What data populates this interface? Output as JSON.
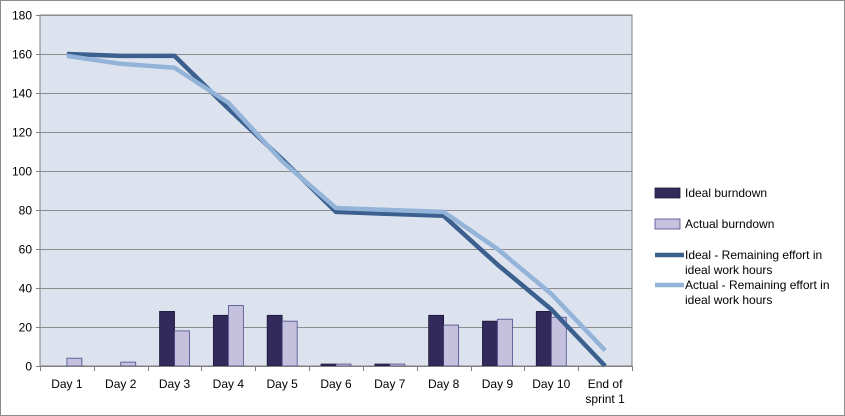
{
  "chart_data": {
    "type": "bar",
    "categories": [
      "Day 1",
      "Day 2",
      "Day 3",
      "Day 4",
      "Day 5",
      "Day 6",
      "Day 7",
      "Day 8",
      "Day 9",
      "Day 10",
      "End of sprint 1"
    ],
    "category_lines": [
      [
        "Day 1"
      ],
      [
        "Day 2"
      ],
      [
        "Day 3"
      ],
      [
        "Day 4"
      ],
      [
        "Day 5"
      ],
      [
        "Day 6"
      ],
      [
        "Day 7"
      ],
      [
        "Day 8"
      ],
      [
        "Day 9"
      ],
      [
        "Day 10"
      ],
      [
        "End of",
        "sprint 1"
      ]
    ],
    "series": [
      {
        "name": "Ideal burndown",
        "kind": "bar",
        "color": "#312a5a",
        "values": [
          0,
          0,
          28,
          26,
          26,
          1,
          1,
          26,
          23,
          28,
          null
        ]
      },
      {
        "name": "Actual burndown",
        "kind": "bar",
        "color": "#c4c0de",
        "values": [
          4,
          2,
          18,
          31,
          23,
          1,
          1,
          21,
          24,
          25,
          null
        ]
      },
      {
        "name": "Ideal - Remaining effort in ideal work hours",
        "kind": "line",
        "color": "#3b5f8e",
        "values": [
          160,
          159,
          159,
          132,
          106,
          79,
          78,
          77,
          52,
          29,
          0
        ]
      },
      {
        "name": "Actual - Remaining effort in ideal work hours",
        "kind": "line",
        "color": "#93b3d9",
        "values": [
          159,
          155,
          153,
          135,
          105,
          81,
          80,
          79,
          60,
          37,
          8
        ]
      }
    ],
    "legend_lines": [
      [
        "Ideal burndown"
      ],
      [
        "Actual burndown"
      ],
      [
        "Ideal - Remaining effort in",
        "ideal work hours"
      ],
      [
        "Actual - Remaining effort in",
        "ideal work hours"
      ]
    ],
    "ylim": [
      0,
      180
    ],
    "yticks": [
      0,
      20,
      40,
      60,
      80,
      100,
      120,
      140,
      160,
      180
    ],
    "grid": true,
    "plot_background": "#dde3ee",
    "legend_position": "right",
    "title": "",
    "xlabel": "",
    "ylabel": ""
  }
}
